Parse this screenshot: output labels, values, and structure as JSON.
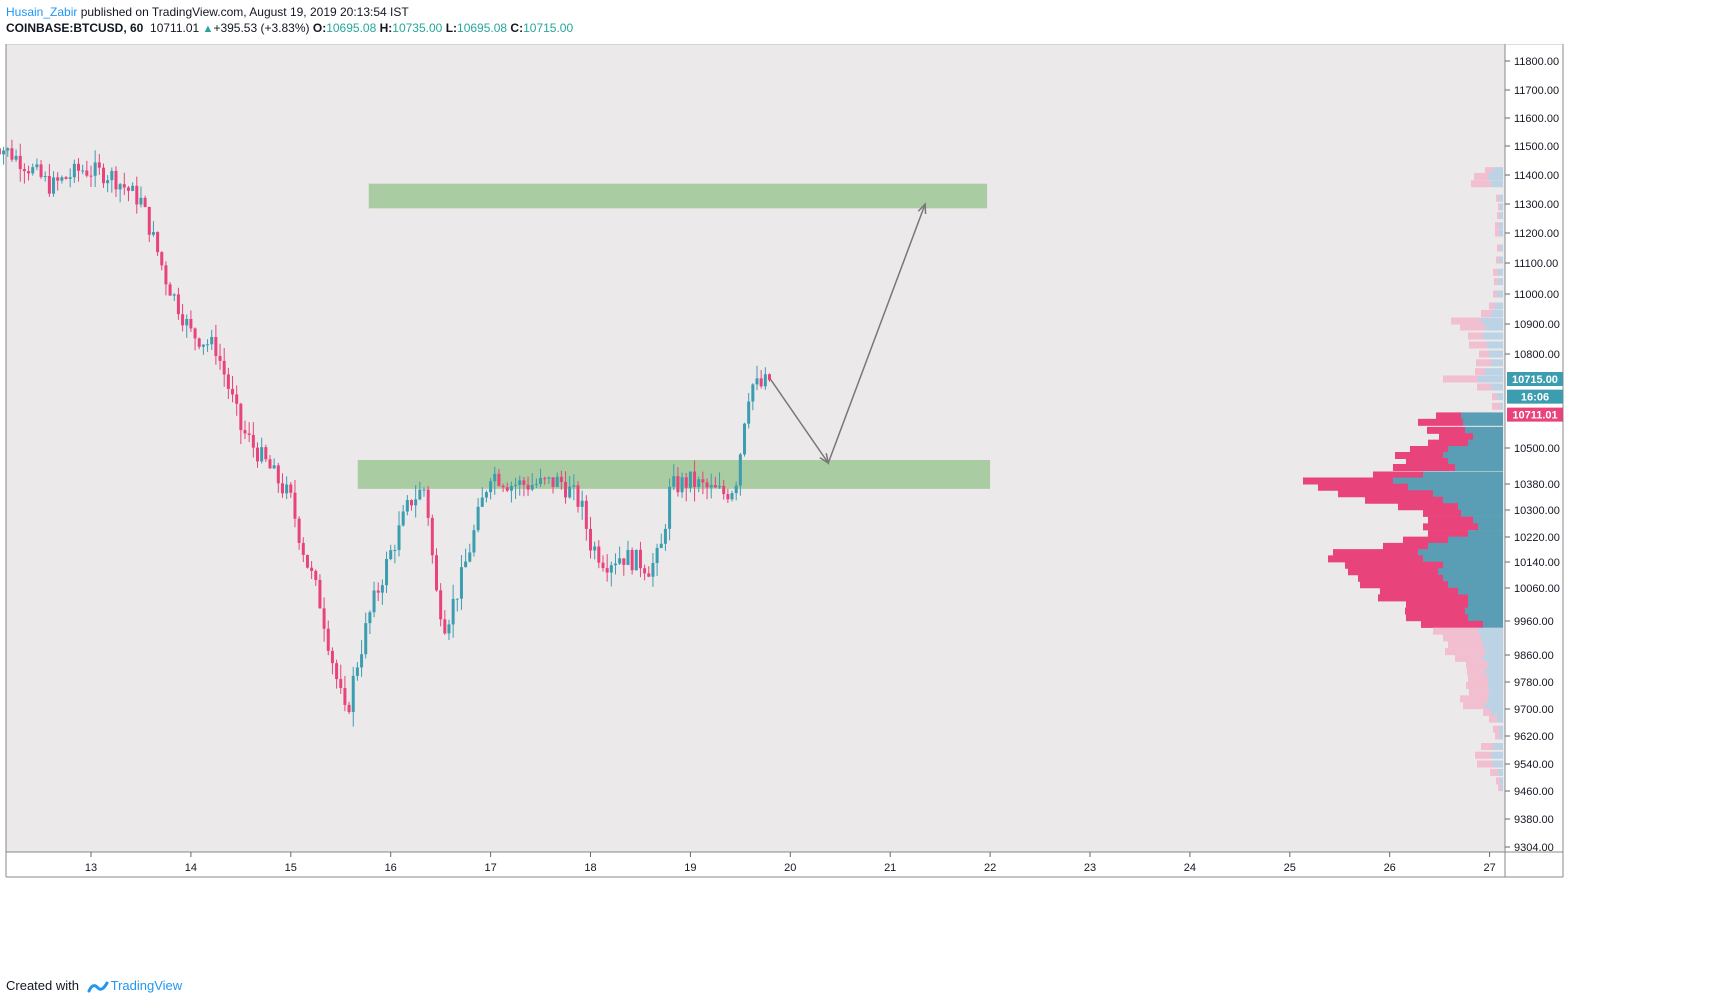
{
  "header": {
    "author": "Husain_Zabir",
    "published_text": " published on TradingView.com, August 19, 2019 20:13:54 IST",
    "symbol": "COINBASE:BTCUSD, 60",
    "last_price": "10711.01",
    "change_text": "+395.53 (+3.83%)",
    "open_label": "O:",
    "open_value": "10695.08",
    "high_label": "H:",
    "high_value": "10735.00",
    "low_label": "L:",
    "low_value": "10695.08",
    "close_label": "C:",
    "close_value": "10715.00"
  },
  "footer": {
    "created_with": "Created with",
    "brand": "TradingView"
  },
  "colors": {
    "up": "#3c9db0",
    "down": "#e8437a",
    "zone": "#a6ca9e",
    "vp_up": "#5a9eb5",
    "vp_down": "#e8437a",
    "vp_up_light": "#bcd3e6",
    "vp_down_light": "#f2bfd0",
    "price_tag_up": "#3c9db0",
    "price_tag_down": "#e8437a",
    "arrow": "#777777"
  },
  "chart_data": {
    "type": "candlestick",
    "x_tick_labels": [
      "13",
      "14",
      "15",
      "16",
      "17",
      "18",
      "19",
      "20",
      "21",
      "22",
      "23",
      "24",
      "25",
      "26",
      "27"
    ],
    "y_tick_labels": [
      "11800.00",
      "11700.00",
      "11600.00",
      "11500.00",
      "11400.00",
      "11300.00",
      "11200.00",
      "11100.00",
      "11000.00",
      "10900.00",
      "10800.00",
      "10500.00",
      "10380.00",
      "10300.00",
      "10220.00",
      "10140.00",
      "10060.00",
      "9960.00",
      "9860.00",
      "9780.00",
      "9700.00",
      "9620.00",
      "9540.00",
      "9460.00",
      "9380.00",
      "9304.00"
    ],
    "price_tags": [
      {
        "text": "10715.00",
        "price": 10715,
        "kind": "up"
      },
      {
        "text": "16:06",
        "price": 10660,
        "kind": "up"
      },
      {
        "text": "10711.01",
        "price": 10604,
        "kind": "down"
      }
    ],
    "zones": [
      {
        "day_from": 15.78,
        "day_to": 21.97,
        "price_low": 11285,
        "price_high": 11370
      },
      {
        "day_from": 15.67,
        "day_to": 22.0,
        "price_low": 10365,
        "price_high": 10460
      }
    ],
    "arrow_path": [
      [
        19.8,
        10715
      ],
      [
        20.38,
        10450
      ],
      [
        21.35,
        11300
      ]
    ],
    "path": [
      [
        12.0,
        11520
      ],
      [
        12.3,
        11450
      ],
      [
        12.6,
        11360
      ],
      [
        12.9,
        11420
      ],
      [
        13.2,
        11400
      ],
      [
        13.5,
        11310
      ],
      [
        13.75,
        11050
      ],
      [
        14.0,
        10870
      ],
      [
        14.25,
        10820
      ],
      [
        14.5,
        10560
      ],
      [
        14.75,
        10450
      ],
      [
        15.0,
        10330
      ],
      [
        15.15,
        10150
      ],
      [
        15.3,
        10010
      ],
      [
        15.45,
        9800
      ],
      [
        15.55,
        9670
      ],
      [
        15.65,
        9820
      ],
      [
        15.8,
        9990
      ],
      [
        16.0,
        10170
      ],
      [
        16.2,
        10330
      ],
      [
        16.35,
        10370
      ],
      [
        16.45,
        10050
      ],
      [
        16.55,
        9950
      ],
      [
        16.7,
        10080
      ],
      [
        16.85,
        10250
      ],
      [
        17.0,
        10420
      ],
      [
        17.2,
        10380
      ],
      [
        17.5,
        10380
      ],
      [
        17.7,
        10390
      ],
      [
        17.9,
        10320
      ],
      [
        18.0,
        10200
      ],
      [
        18.15,
        10140
      ],
      [
        18.3,
        10160
      ],
      [
        18.5,
        10140
      ],
      [
        18.6,
        10120
      ],
      [
        18.7,
        10170
      ],
      [
        18.8,
        10370
      ],
      [
        19.0,
        10390
      ],
      [
        19.2,
        10360
      ],
      [
        19.35,
        10350
      ],
      [
        19.45,
        10380
      ],
      [
        19.5,
        10490
      ],
      [
        19.55,
        10620
      ],
      [
        19.6,
        10700
      ],
      [
        19.7,
        10690
      ],
      [
        19.8,
        10715
      ]
    ],
    "volume_profile_rows": [
      {
        "price": 11415,
        "up": 10,
        "down": 8,
        "light": true
      },
      {
        "price": 11395,
        "up": 15,
        "down": 14,
        "light": true
      },
      {
        "price": 11370,
        "up": 12,
        "down": 20,
        "light": true
      },
      {
        "price": 11320,
        "up": 4,
        "down": 3,
        "light": true
      },
      {
        "price": 11290,
        "up": 3,
        "down": 2,
        "light": true
      },
      {
        "price": 11260,
        "up": 3,
        "down": 3,
        "light": true
      },
      {
        "price": 11225,
        "up": 4,
        "down": 4,
        "light": true
      },
      {
        "price": 11200,
        "up": 4,
        "down": 4,
        "light": true
      },
      {
        "price": 11150,
        "up": 3,
        "down": 3,
        "light": true
      },
      {
        "price": 11110,
        "up": 4,
        "down": 3,
        "light": true
      },
      {
        "price": 11070,
        "up": 5,
        "down": 5,
        "light": true
      },
      {
        "price": 11040,
        "up": 5,
        "down": 4,
        "light": true
      },
      {
        "price": 11000,
        "up": 6,
        "down": 4,
        "light": true
      },
      {
        "price": 10960,
        "up": 8,
        "down": 6,
        "light": true
      },
      {
        "price": 10935,
        "up": 12,
        "down": 10,
        "light": true
      },
      {
        "price": 10910,
        "up": 22,
        "down": 30,
        "light": true
      },
      {
        "price": 10890,
        "up": 18,
        "down": 25,
        "light": true
      },
      {
        "price": 10860,
        "up": 20,
        "down": 15,
        "light": true
      },
      {
        "price": 10830,
        "up": 16,
        "down": 18,
        "light": true
      },
      {
        "price": 10800,
        "up": 14,
        "down": 10,
        "light": true
      },
      {
        "price": 10770,
        "up": 12,
        "down": 15,
        "light": true
      },
      {
        "price": 10740,
        "up": 18,
        "down": 10,
        "light": true
      },
      {
        "price": 10715,
        "up": 25,
        "down": 35,
        "light": true
      },
      {
        "price": 10690,
        "up": 12,
        "down": 14,
        "light": true
      },
      {
        "price": 10660,
        "up": 6,
        "down": 5,
        "light": true
      },
      {
        "price": 10630,
        "up": 3,
        "down": 8,
        "light": true
      },
      {
        "price": 10600,
        "up": 42,
        "down": 25,
        "light": false
      },
      {
        "price": 10580,
        "up": 40,
        "down": 45,
        "light": false
      },
      {
        "price": 10555,
        "up": 38,
        "down": 38,
        "light": false
      },
      {
        "price": 10535,
        "up": 30,
        "down": 34,
        "light": false
      },
      {
        "price": 10515,
        "up": 35,
        "down": 40,
        "light": false
      },
      {
        "price": 10495,
        "up": 55,
        "down": 38,
        "light": false
      },
      {
        "price": 10475,
        "up": 60,
        "down": 48,
        "light": false
      },
      {
        "price": 10455,
        "up": 55,
        "down": 42,
        "light": false
      },
      {
        "price": 10435,
        "up": 48,
        "down": 62,
        "light": false
      },
      {
        "price": 10410,
        "up": 80,
        "down": 50,
        "light": false
      },
      {
        "price": 10390,
        "up": 110,
        "down": 90,
        "light": false
      },
      {
        "price": 10370,
        "up": 95,
        "down": 90,
        "light": false
      },
      {
        "price": 10350,
        "up": 70,
        "down": 95,
        "light": false
      },
      {
        "price": 10330,
        "up": 60,
        "down": 78,
        "light": false
      },
      {
        "price": 10310,
        "up": 45,
        "down": 60,
        "light": false
      },
      {
        "price": 10290,
        "up": 42,
        "down": 38,
        "light": false
      },
      {
        "price": 10270,
        "up": 30,
        "down": 45,
        "light": false
      },
      {
        "price": 10250,
        "up": 25,
        "down": 55,
        "light": false
      },
      {
        "price": 10230,
        "up": 35,
        "down": 40,
        "light": false
      },
      {
        "price": 10210,
        "up": 55,
        "down": 45,
        "light": false
      },
      {
        "price": 10190,
        "up": 75,
        "down": 45,
        "light": false
      },
      {
        "price": 10170,
        "up": 85,
        "down": 85,
        "light": false
      },
      {
        "price": 10150,
        "up": 80,
        "down": 95,
        "light": false
      },
      {
        "price": 10130,
        "up": 60,
        "down": 98,
        "light": false
      },
      {
        "price": 10110,
        "up": 65,
        "down": 90,
        "light": false
      },
      {
        "price": 10090,
        "up": 60,
        "down": 85,
        "light": false
      },
      {
        "price": 10070,
        "up": 55,
        "down": 88,
        "light": false
      },
      {
        "price": 10050,
        "up": 45,
        "down": 78,
        "light": false
      },
      {
        "price": 10030,
        "up": 35,
        "down": 90,
        "light": false
      },
      {
        "price": 10010,
        "up": 35,
        "down": 62,
        "light": false
      },
      {
        "price": 9990,
        "up": 38,
        "down": 60,
        "light": false
      },
      {
        "price": 9970,
        "up": 35,
        "down": 62,
        "light": false
      },
      {
        "price": 9950,
        "up": 20,
        "down": 62,
        "light": false
      },
      {
        "price": 9930,
        "up": 25,
        "down": 45,
        "light": true
      },
      {
        "price": 9910,
        "up": 22,
        "down": 38,
        "light": true
      },
      {
        "price": 9890,
        "up": 20,
        "down": 35,
        "light": true
      },
      {
        "price": 9870,
        "up": 18,
        "down": 40,
        "light": true
      },
      {
        "price": 9850,
        "up": 20,
        "down": 28,
        "light": true
      },
      {
        "price": 9830,
        "up": 15,
        "down": 22,
        "light": true
      },
      {
        "price": 9810,
        "up": 18,
        "down": 18,
        "light": true
      },
      {
        "price": 9790,
        "up": 15,
        "down": 20,
        "light": true
      },
      {
        "price": 9770,
        "up": 15,
        "down": 22,
        "light": true
      },
      {
        "price": 9750,
        "up": 14,
        "down": 20,
        "light": true
      },
      {
        "price": 9730,
        "up": 15,
        "down": 28,
        "light": true
      },
      {
        "price": 9710,
        "up": 18,
        "down": 22,
        "light": true
      },
      {
        "price": 9690,
        "up": 12,
        "down": 8,
        "light": true
      },
      {
        "price": 9670,
        "up": 6,
        "down": 8,
        "light": true
      },
      {
        "price": 9640,
        "up": 4,
        "down": 6,
        "light": true
      },
      {
        "price": 9620,
        "up": 4,
        "down": 4,
        "light": true
      },
      {
        "price": 9590,
        "up": 10,
        "down": 12,
        "light": true
      },
      {
        "price": 9565,
        "up": 12,
        "down": 16,
        "light": true
      },
      {
        "price": 9540,
        "up": 10,
        "down": 16,
        "light": true
      },
      {
        "price": 9515,
        "up": 5,
        "down": 8,
        "light": true
      },
      {
        "price": 9490,
        "up": 3,
        "down": 4,
        "light": true
      },
      {
        "price": 9470,
        "up": 2,
        "down": 3,
        "light": true
      }
    ]
  }
}
